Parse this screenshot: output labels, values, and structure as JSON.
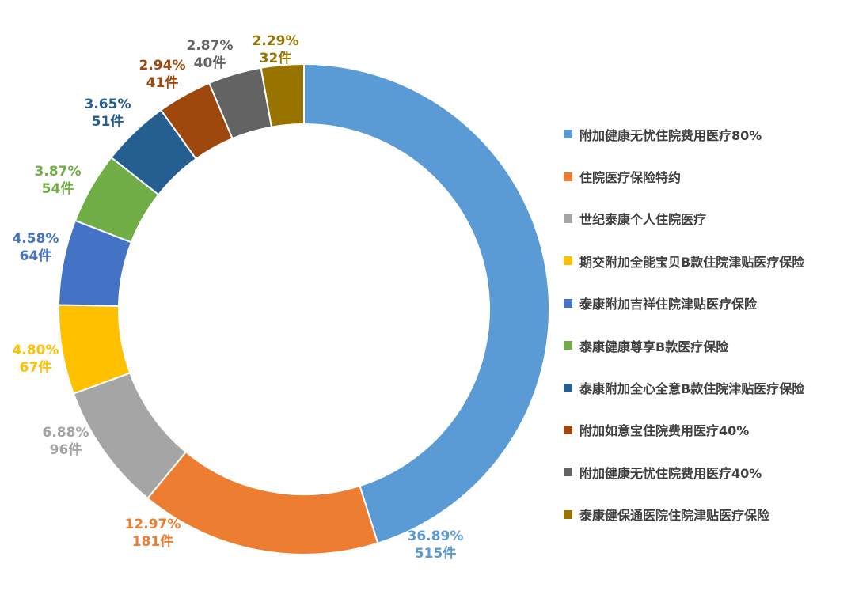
{
  "chart_data": {
    "type": "pie",
    "donut": true,
    "legend_position": "right",
    "slices": [
      {
        "name": "附加健康无忧住院费用医疗80%",
        "percent_label": "36.89%",
        "count_label": "515件",
        "value": 515,
        "color": "#5B9BD5"
      },
      {
        "name": "住院医疗保险特约",
        "percent_label": "12.97%",
        "count_label": "181件",
        "value": 181,
        "color": "#ED7D31"
      },
      {
        "name": "世纪泰康个人住院医疗",
        "percent_label": "6.88%",
        "count_label": "96件",
        "value": 96,
        "color": "#A5A5A5"
      },
      {
        "name": "期交附加全能宝贝B款住院津贴医疗保险",
        "percent_label": "4.80%",
        "count_label": "67件",
        "value": 67,
        "color": "#FFC000"
      },
      {
        "name": "泰康附加吉祥住院津贴医疗保险",
        "percent_label": "4.58%",
        "count_label": "64件",
        "value": 64,
        "color": "#4472C4"
      },
      {
        "name": "泰康健康尊享B款医疗保险",
        "percent_label": "3.87%",
        "count_label": "54件",
        "value": 54,
        "color": "#70AD47"
      },
      {
        "name": "泰康附加全心全意B款住院津贴医疗保险",
        "percent_label": "3.65%",
        "count_label": "51件",
        "value": 51,
        "color": "#255E91"
      },
      {
        "name": "附加如意宝住院费用医疗40%",
        "percent_label": "2.94%",
        "count_label": "41件",
        "value": 41,
        "color": "#9E480E"
      },
      {
        "name": "附加健康无忧住院费用医疗40%",
        "percent_label": "2.87%",
        "count_label": "40件",
        "value": 40,
        "color": "#636363"
      },
      {
        "name": "泰康健保通医院住院津贴医疗保险",
        "percent_label": "2.29%",
        "count_label": "32件",
        "value": 32,
        "color": "#997300"
      }
    ]
  }
}
